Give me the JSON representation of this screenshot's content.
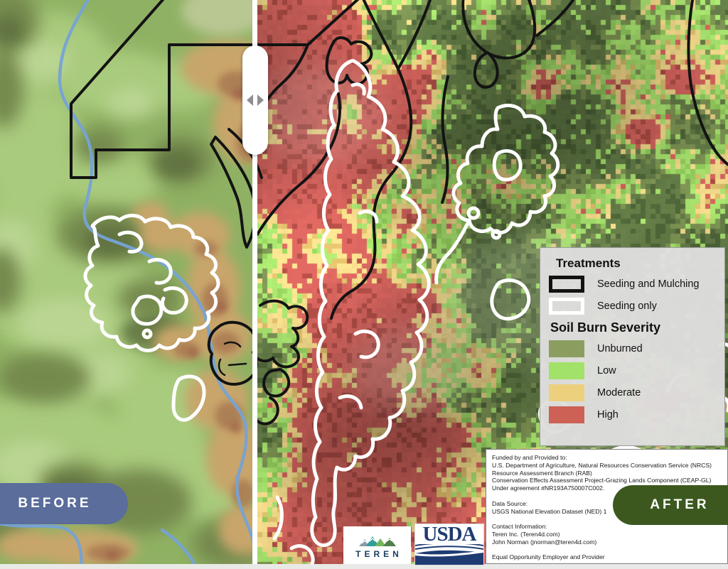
{
  "comparison": {
    "before_label": "BEFORE",
    "after_label": "AFTER",
    "before_color": "#5a6d9b",
    "after_color": "#3c581f"
  },
  "legend": {
    "treatments_title": "Treatments",
    "treatments": [
      {
        "label": "Seeding and Mulching",
        "outline": "#131313"
      },
      {
        "label": "Seeding only",
        "outline": "#ffffff"
      }
    ],
    "severity_title": "Soil Burn Severity",
    "severity": [
      {
        "label": "Unburned",
        "color": "#8b9e60"
      },
      {
        "label": "Low",
        "color": "#a2e268"
      },
      {
        "label": "Moderate",
        "color": "#ecd07e"
      },
      {
        "label": "High",
        "color": "#cd6156"
      }
    ]
  },
  "credits": {
    "lines": [
      "Funded by and Provided to:",
      "U.S. Department of Agriculture, Natural Resources Conservation Service (NRCS)",
      "Resource Assessment Branch (RAB)",
      "Conservation Effects Assessment Project-Grazing Lands Component (CEAP-GL)",
      "Under agreement #NR193A750007C002.",
      "",
      "Data Source:",
      "USGS National Elevation Dataset (NED) 1",
      "",
      "Contact Information:",
      "Teren Inc. (Teren4d.com)",
      "John Norman (jnorman@teren4d.com)",
      "",
      "Equal Opportunity Employer and Provider"
    ]
  },
  "logos": {
    "teren_label": "TEREN",
    "usda_label": "USDA"
  },
  "map_colors": {
    "high": "#c05a54",
    "high_dark": "#9e453f",
    "moderate": "#dcc57d",
    "moderate_dark": "#c7aa60",
    "low": "#97cc63",
    "low_alt": "#84ba53",
    "unburned": "#71854b",
    "unburned_dark": "#5a7040",
    "unburned_darkest": "#475c33"
  }
}
